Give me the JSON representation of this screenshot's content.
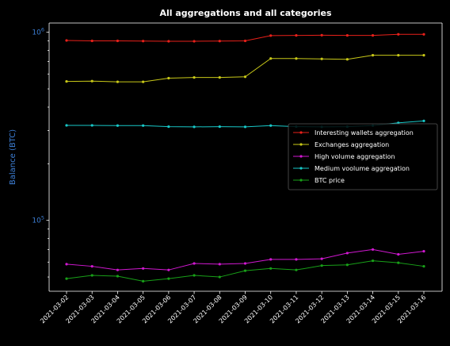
{
  "chart_data": {
    "type": "line",
    "title": "All aggregations and all categories",
    "xlabel": "",
    "ylabel": "Balance (BTC)",
    "yscale": "log",
    "ylim": [
      42000,
      1120000
    ],
    "yticks": [
      {
        "value": 100000,
        "base": "10",
        "exp": "5"
      },
      {
        "value": 1000000,
        "base": "10",
        "exp": "6"
      }
    ],
    "x": [
      "2021-03-02",
      "2021-03-03",
      "2021-03-04",
      "2021-03-05",
      "2021-03-06",
      "2021-03-07",
      "2021-03-08",
      "2021-03-09",
      "2021-03-10",
      "2021-03-11",
      "2021-03-12",
      "2021-03-13",
      "2021-03-14",
      "2021-03-15",
      "2021-03-16"
    ],
    "legend": "center-right",
    "grid": false,
    "colors": {
      "background": "#000000",
      "axis": "#ffffff",
      "ytick": "#3d7fd6"
    },
    "series": [
      {
        "name": "Interesting wallets aggregation",
        "color": "#e8201a",
        "values": [
          905000,
          900000,
          900000,
          898000,
          896000,
          896000,
          898000,
          900000,
          960000,
          962000,
          965000,
          962000,
          962000,
          975000,
          975000
        ]
      },
      {
        "name": "Exchanges aggregation",
        "color": "#c8c818",
        "values": [
          548000,
          550000,
          545000,
          545000,
          570000,
          575000,
          575000,
          580000,
          725000,
          725000,
          722000,
          718000,
          755000,
          755000,
          755000
        ]
      },
      {
        "name": "High volume aggregation",
        "color": "#d018d0",
        "values": [
          58500,
          57000,
          54500,
          55500,
          54500,
          59000,
          58500,
          59000,
          62000,
          62000,
          62500,
          67000,
          70000,
          66000,
          68500
        ]
      },
      {
        "name": "Medium voolume aggregation",
        "color": "#18c8c8",
        "values": [
          320000,
          320000,
          319000,
          319000,
          315000,
          314000,
          315000,
          314000,
          319000,
          315000,
          314000,
          315000,
          319000,
          330000,
          338000
        ]
      },
      {
        "name": "BTC price",
        "color": "#18a018",
        "values": [
          49000,
          51000,
          50500,
          47500,
          49000,
          51000,
          50000,
          54000,
          55500,
          54500,
          57500,
          58000,
          61000,
          59500,
          57000
        ]
      }
    ]
  }
}
